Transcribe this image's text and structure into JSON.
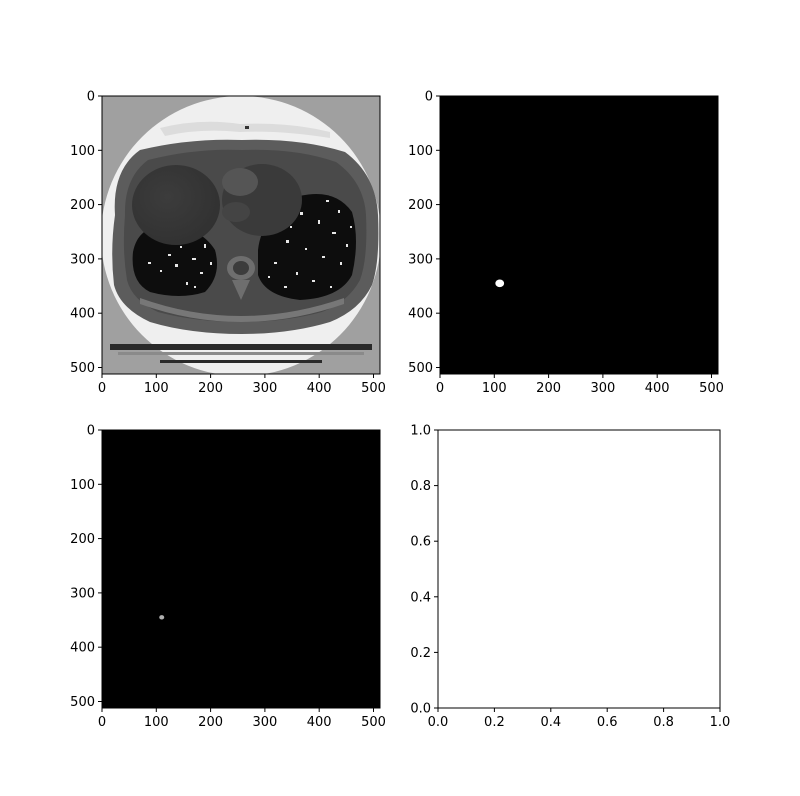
{
  "chart_data": [
    {
      "type": "heatmap",
      "content": "ct-scan-slice",
      "colormap": "gray",
      "xlim": [
        0,
        512
      ],
      "ylim": [
        512,
        0
      ],
      "xticks": [
        "0",
        "100",
        "200",
        "300",
        "400",
        "500"
      ],
      "yticks": [
        "0",
        "100",
        "200",
        "300",
        "400",
        "500"
      ]
    },
    {
      "type": "heatmap",
      "content": "binary-mask",
      "colormap": "gray",
      "xlim": [
        0,
        512
      ],
      "ylim": [
        512,
        0
      ],
      "xticks": [
        "0",
        "100",
        "200",
        "300",
        "400",
        "500"
      ],
      "yticks": [
        "0",
        "100",
        "200",
        "300",
        "400",
        "500"
      ],
      "spots": [
        {
          "x": 110,
          "y": 345,
          "r": 7,
          "color": "#ffffff"
        }
      ]
    },
    {
      "type": "heatmap",
      "content": "predicted-mask",
      "colormap": "gray",
      "xlim": [
        0,
        512
      ],
      "ylim": [
        512,
        0
      ],
      "xticks": [
        "0",
        "100",
        "200",
        "300",
        "400",
        "500"
      ],
      "yticks": [
        "0",
        "100",
        "200",
        "300",
        "400",
        "500"
      ],
      "spots": [
        {
          "x": 110,
          "y": 345,
          "r": 4,
          "color": "#b0b0b0"
        }
      ]
    },
    {
      "type": "scatter",
      "content": "empty",
      "xlim": [
        0.0,
        1.0
      ],
      "ylim": [
        0.0,
        1.0
      ],
      "xticks": [
        "0.0",
        "0.2",
        "0.4",
        "0.6",
        "0.8",
        "1.0"
      ],
      "yticks": [
        "0.0",
        "0.2",
        "0.4",
        "0.6",
        "0.8",
        "1.0"
      ],
      "grid": false
    }
  ]
}
